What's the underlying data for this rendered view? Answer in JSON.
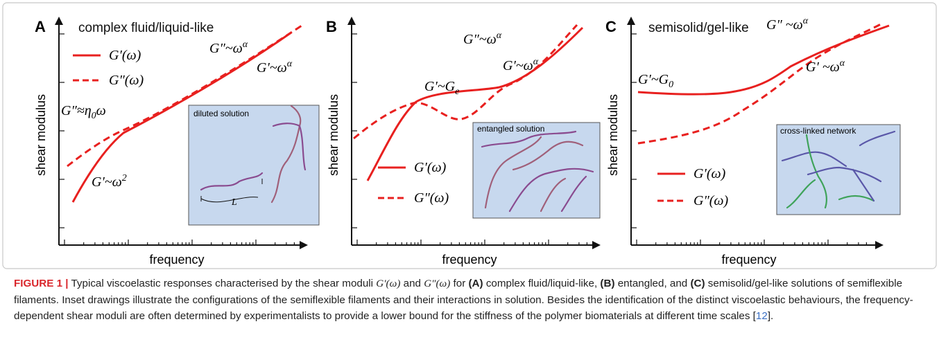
{
  "panels": [
    {
      "label": "A",
      "title": "complex fluid/liquid-like",
      "y_label": "shear modulus",
      "x_label": "frequency",
      "legend": [
        "G′(ω)",
        "G″(ω)"
      ],
      "annotations": [
        {
          "base": "G″~ω",
          "sup": "α"
        },
        {
          "base": "G′~ω",
          "sup": "α"
        },
        {
          "base": "G″≈η",
          "sub": "0",
          "tail": "ω"
        },
        {
          "base": "G′~ω",
          "sup": "2"
        }
      ],
      "inset": {
        "label": "diluted solution",
        "marker": "L"
      }
    },
    {
      "label": "B",
      "y_label": "shear modulus",
      "x_label": "frequency",
      "legend": [
        "G′(ω)",
        "G″(ω)"
      ],
      "annotations": [
        {
          "base": "G″~ω",
          "sup": "α"
        },
        {
          "base": "G′~ω",
          "sup": "α"
        },
        {
          "base": "G′~G",
          "sub": "e"
        }
      ],
      "inset": {
        "label": "entangled solution"
      }
    },
    {
      "label": "C",
      "title": "semisolid/gel-like",
      "y_label": "shear modulus",
      "x_label": "frequency",
      "legend": [
        "G′(ω)",
        "G″(ω)"
      ],
      "annotations": [
        {
          "base": "G″ ~ω",
          "sup": "α"
        },
        {
          "base": "G′ ~ω",
          "sup": "α"
        },
        {
          "base": "G′~G",
          "sub": "0"
        }
      ],
      "inset": {
        "label": "cross-linked network"
      }
    }
  ],
  "caption": {
    "segments": [
      "FIGURE 1 |",
      " Typical viscoelastic responses characterised by the shear moduli ",
      "G′(ω)",
      " and ",
      "G″(ω)",
      " for ",
      "(A)",
      " complex fluid/liquid-like, ",
      "(B)",
      " entangled, and ",
      "(C)",
      " semisolid/gel-like solutions of semiflexible filaments. Inset drawings illustrate the configurations of the semiflexible filaments and their interactions in solution. Besides the identification of the distinct viscoelastic behaviours, the frequency-dependent shear moduli are often determined by experimentalists to provide a lower bound for the stiffness of the polymer biomaterials at different time scales [",
      "12",
      "]."
    ]
  }
}
